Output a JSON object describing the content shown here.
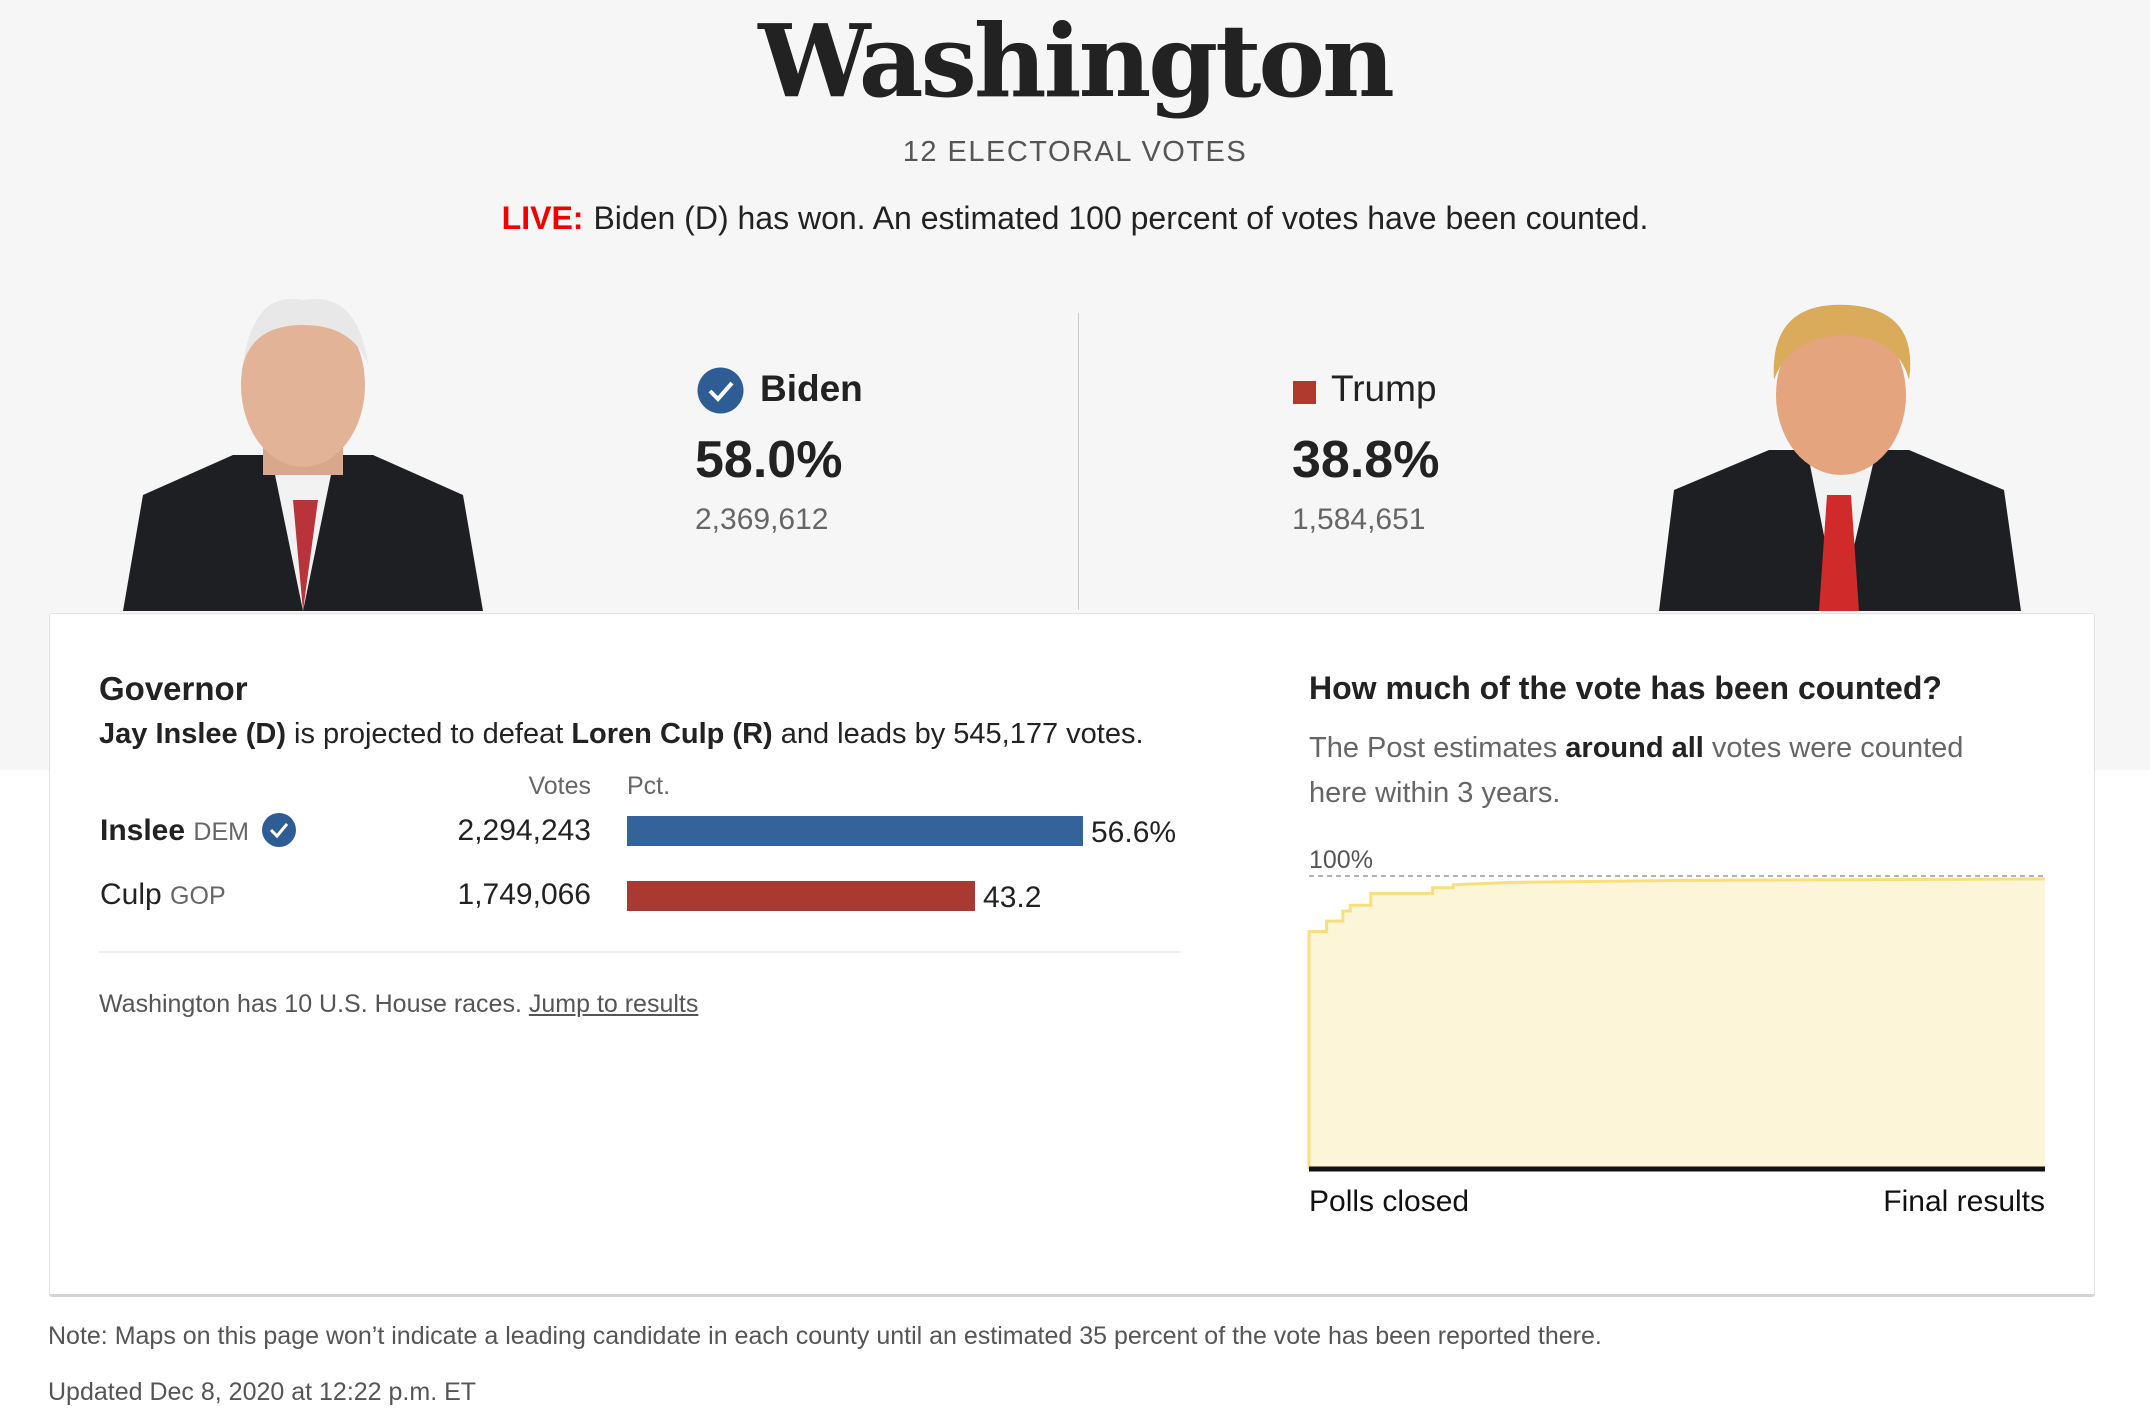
{
  "state": "Washington",
  "electoral_votes": "12 ELECTORAL VOTES",
  "live": {
    "tag": "LIVE:",
    "text": "Biden (D) has won. An estimated 100 percent of votes have been counted."
  },
  "candidates": [
    {
      "name": "Biden",
      "pct": "58.0%",
      "votes": "2,369,612",
      "color": "#2e5d95",
      "winner": true
    },
    {
      "name": "Trump",
      "pct": "38.8%",
      "votes": "1,584,651",
      "color": "#b03a2e",
      "winner": false
    }
  ],
  "governor": {
    "title": "Governor",
    "desc": {
      "winner": "Jay Inslee (D)",
      "mid": " is projected to defeat ",
      "loser": "Loren Culp (R)",
      "end": " and leads by 545,177 votes."
    },
    "headers": {
      "votes": "Votes",
      "pct": "Pct."
    },
    "rows": [
      {
        "name": "Inslee",
        "party": "DEM",
        "votes": "2,294,243",
        "pct_label": "56.6%",
        "pct": 56.6,
        "color": "#33639a",
        "winner": true
      },
      {
        "name": "Culp",
        "party": "GOP",
        "votes": "1,749,066",
        "pct_label": "43.2",
        "pct": 43.2,
        "color": "#a93a32",
        "winner": false
      }
    ],
    "house_text": "Washington has 10 U.S. House races. ",
    "house_link": "Jump to results"
  },
  "counted": {
    "title": "How much of the vote has been counted?",
    "desc_pre": "The Post estimates ",
    "desc_bold": "around all",
    "desc_post": " votes were counted here within 3 years."
  },
  "chart_data": {
    "type": "area",
    "title": "How much of the vote has been counted?",
    "y_label_top": "100%",
    "ylim": [
      0,
      100
    ],
    "x_start_label": "Polls closed",
    "x_end_label": "Final results",
    "x": [
      0,
      0.024,
      0.024,
      0.046,
      0.046,
      0.056,
      0.056,
      0.084,
      0.084,
      0.168,
      0.168,
      0.196,
      0.196,
      0.27,
      0.5,
      1.0
    ],
    "y": [
      81,
      81,
      84.6,
      84.6,
      88,
      88,
      90,
      90,
      94,
      94,
      96,
      96,
      97,
      97.8,
      98.5,
      99
    ],
    "fill": "#fcf5d8",
    "line": "#f6df7c"
  },
  "footer": {
    "note": "Note: Maps on this page won’t indicate a leading candidate in each county until an estimated 35 percent of the vote has been reported there.",
    "updated": "Updated Dec 8, 2020 at 12:22 p.m. ET"
  }
}
